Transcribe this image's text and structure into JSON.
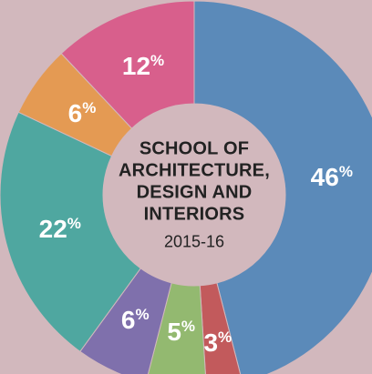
{
  "colors": {
    "background": "#d2b8bd",
    "center_disc": "#d2b8bd",
    "text_dark": "#222222",
    "text_light": "#ffffff"
  },
  "chart_data": {
    "type": "pie",
    "title": "SCHOOL OF ARCHITECTURE, DESIGN AND INTERIORS",
    "subtitle": "2015-16",
    "categories": [
      "",
      "",
      "",
      "",
      "",
      "",
      ""
    ],
    "values": [
      46,
      3,
      5,
      6,
      22,
      6,
      12
    ],
    "labels": [
      "46",
      "3",
      "5",
      "6",
      "22",
      "6",
      "12"
    ],
    "unit": "%",
    "colors": [
      "#5b8ab9",
      "#c25a5c",
      "#93b970",
      "#7f70ac",
      "#4fa7a0",
      "#e49a53",
      "#d85f8c"
    ],
    "donut": true,
    "legend": "none"
  }
}
